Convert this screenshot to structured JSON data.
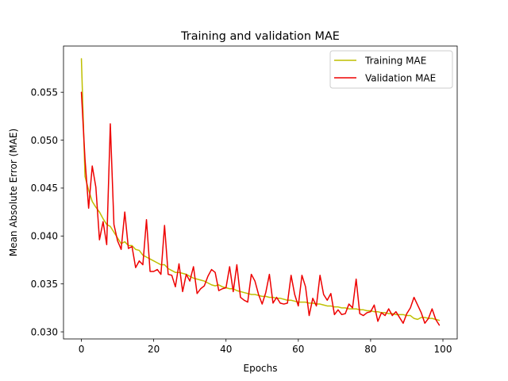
{
  "chart_data": {
    "type": "line",
    "title": "Training and validation MAE",
    "xlabel": "Epochs",
    "ylabel": "Mean Absolute Error (MAE)",
    "xlim": [
      -4.95,
      103.95
    ],
    "ylim": [
      0.02926,
      0.05982
    ],
    "xticks": [
      0,
      20,
      40,
      60,
      80,
      100
    ],
    "yticks": [
      0.03,
      0.035,
      0.04,
      0.045,
      0.05,
      0.055
    ],
    "ytick_labels": [
      "0.030",
      "0.035",
      "0.040",
      "0.045",
      "0.050",
      "0.055"
    ],
    "grid": false,
    "legend": "top-right",
    "x": [
      0,
      1,
      2,
      3,
      4,
      5,
      6,
      7,
      8,
      9,
      10,
      11,
      12,
      13,
      14,
      15,
      16,
      17,
      18,
      19,
      20,
      21,
      22,
      23,
      24,
      25,
      26,
      27,
      28,
      29,
      30,
      31,
      32,
      33,
      34,
      35,
      36,
      37,
      38,
      39,
      40,
      41,
      42,
      43,
      44,
      45,
      46,
      47,
      48,
      49,
      50,
      51,
      52,
      53,
      54,
      55,
      56,
      57,
      58,
      59,
      60,
      61,
      62,
      63,
      64,
      65,
      66,
      67,
      68,
      69,
      70,
      71,
      72,
      73,
      74,
      75,
      76,
      77,
      78,
      79,
      80,
      81,
      82,
      83,
      84,
      85,
      86,
      87,
      88,
      89,
      90,
      91,
      92,
      93,
      94,
      95,
      96,
      97,
      98,
      99
    ],
    "series": [
      {
        "name": "Training MAE",
        "color": "#bfbf00",
        "values": [
          0.0585,
          0.0462,
          0.0448,
          0.0436,
          0.043,
          0.0425,
          0.0418,
          0.0412,
          0.041,
          0.0404,
          0.0398,
          0.0392,
          0.0394,
          0.039,
          0.039,
          0.0386,
          0.0385,
          0.038,
          0.0378,
          0.0376,
          0.0374,
          0.0372,
          0.037,
          0.037,
          0.0366,
          0.0364,
          0.0362,
          0.0362,
          0.0361,
          0.036,
          0.0358,
          0.0356,
          0.0355,
          0.0354,
          0.0353,
          0.0351,
          0.0349,
          0.0348,
          0.0349,
          0.0347,
          0.0346,
          0.0345,
          0.0345,
          0.0343,
          0.0342,
          0.0341,
          0.034,
          0.0339,
          0.0339,
          0.0338,
          0.0337,
          0.0337,
          0.0336,
          0.0336,
          0.0335,
          0.0335,
          0.0334,
          0.0333,
          0.0333,
          0.0332,
          0.0331,
          0.0331,
          0.0331,
          0.033,
          0.033,
          0.0329,
          0.0329,
          0.0328,
          0.0327,
          0.0327,
          0.0326,
          0.0326,
          0.0325,
          0.0325,
          0.0324,
          0.0324,
          0.0324,
          0.0323,
          0.0323,
          0.0322,
          0.0322,
          0.0321,
          0.0321,
          0.032,
          0.032,
          0.0319,
          0.0319,
          0.0318,
          0.0318,
          0.0318,
          0.0317,
          0.0317,
          0.0314,
          0.0313,
          0.0315,
          0.0315,
          0.0314,
          0.0314,
          0.0313,
          0.0312
        ]
      },
      {
        "name": "Validation MAE",
        "color": "#ee0000",
        "values": [
          0.055,
          0.048,
          0.0429,
          0.0473,
          0.0451,
          0.0396,
          0.0415,
          0.0391,
          0.0517,
          0.0412,
          0.0395,
          0.0386,
          0.0425,
          0.0387,
          0.0389,
          0.0367,
          0.0374,
          0.037,
          0.0417,
          0.0363,
          0.0363,
          0.0365,
          0.036,
          0.0411,
          0.036,
          0.0359,
          0.0347,
          0.0371,
          0.0342,
          0.036,
          0.0353,
          0.0368,
          0.034,
          0.0345,
          0.0348,
          0.0358,
          0.0365,
          0.0362,
          0.0343,
          0.0345,
          0.0346,
          0.0368,
          0.0342,
          0.037,
          0.0336,
          0.0333,
          0.0331,
          0.036,
          0.0353,
          0.0339,
          0.0329,
          0.0341,
          0.036,
          0.033,
          0.0336,
          0.033,
          0.0329,
          0.033,
          0.0359,
          0.0339,
          0.0327,
          0.0359,
          0.0347,
          0.0317,
          0.0335,
          0.0327,
          0.0359,
          0.0339,
          0.0333,
          0.034,
          0.0318,
          0.0323,
          0.0318,
          0.0319,
          0.0329,
          0.0325,
          0.0355,
          0.0319,
          0.0317,
          0.032,
          0.0321,
          0.0328,
          0.0311,
          0.032,
          0.0317,
          0.0324,
          0.0317,
          0.0321,
          0.0315,
          0.0309,
          0.0319,
          0.0325,
          0.0336,
          0.0328,
          0.032,
          0.0309,
          0.0314,
          0.0324,
          0.0313,
          0.0307
        ]
      }
    ]
  }
}
